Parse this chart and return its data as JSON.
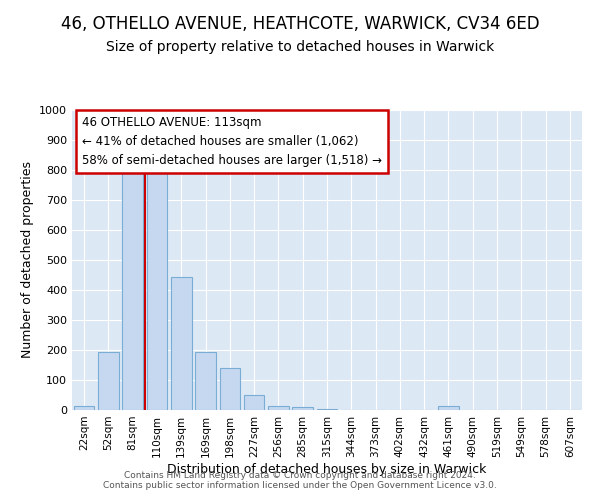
{
  "title": "46, OTHELLO AVENUE, HEATHCOTE, WARWICK, CV34 6ED",
  "subtitle": "Size of property relative to detached houses in Warwick",
  "xlabel": "Distribution of detached houses by size in Warwick",
  "ylabel": "Number of detached properties",
  "categories": [
    "22sqm",
    "52sqm",
    "81sqm",
    "110sqm",
    "139sqm",
    "169sqm",
    "198sqm",
    "227sqm",
    "256sqm",
    "285sqm",
    "315sqm",
    "344sqm",
    "373sqm",
    "402sqm",
    "432sqm",
    "461sqm",
    "490sqm",
    "519sqm",
    "549sqm",
    "578sqm",
    "607sqm"
  ],
  "values": [
    15,
    195,
    790,
    790,
    445,
    195,
    140,
    50,
    15,
    10,
    5,
    0,
    0,
    0,
    0,
    15,
    0,
    0,
    0,
    0,
    0
  ],
  "bar_color": "#c5d8f0",
  "bar_edge_color": "#7aadd4",
  "vline_color": "#cc0000",
  "vline_index": 3,
  "annotation_text": "46 OTHELLO AVENUE: 113sqm\n← 41% of detached houses are smaller (1,062)\n58% of semi-detached houses are larger (1,518) →",
  "annotation_box_edgecolor": "#cc0000",
  "background_color": "#dde8f5",
  "ylim": [
    0,
    1000
  ],
  "yticks": [
    0,
    100,
    200,
    300,
    400,
    500,
    600,
    700,
    800,
    900,
    1000
  ],
  "footer": "Contains HM Land Registry data © Crown copyright and database right 2024.\nContains public sector information licensed under the Open Government Licence v3.0.",
  "title_fontsize": 12,
  "subtitle_fontsize": 10,
  "xlabel_fontsize": 9,
  "ylabel_fontsize": 9,
  "tick_fontsize": 8,
  "annot_fontsize": 8.5
}
